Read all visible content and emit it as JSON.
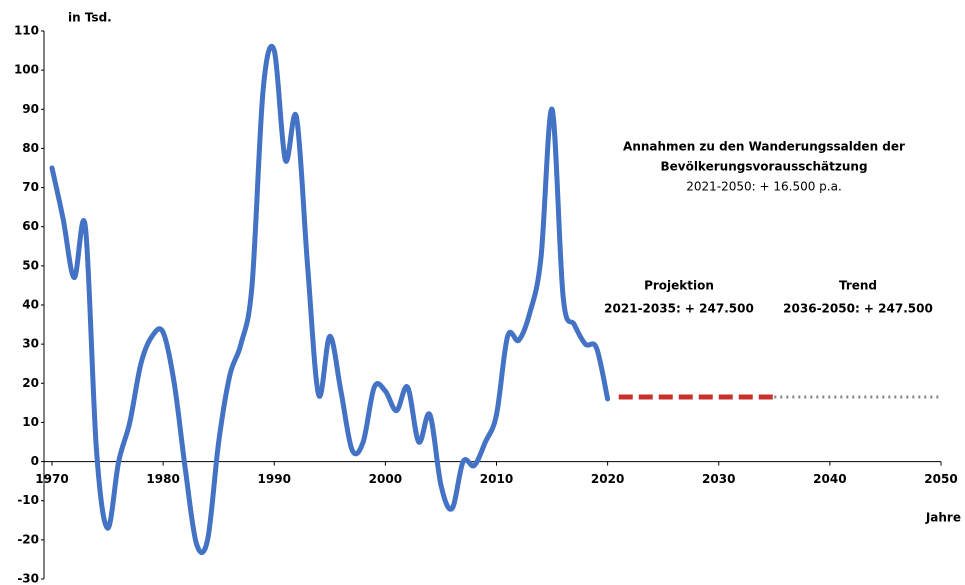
{
  "chart_data": {
    "type": "line",
    "y_axis_label": "in Tsd.",
    "x_axis_label": "Jahre",
    "annotation": {
      "title": [
        "Annahmen zu den Wanderungssalden der",
        "Bevölkerungsvorausschätzung"
      ],
      "subtitle": "2021-2050: + 16.500 p.a."
    },
    "xlim": [
      1970,
      2050
    ],
    "xticks": [
      1970,
      1980,
      1990,
      2000,
      2010,
      2020,
      2030,
      2040,
      2050
    ],
    "ylim": [
      -30,
      110
    ],
    "yticks": [
      -30,
      -20,
      -10,
      0,
      10,
      20,
      30,
      40,
      50,
      60,
      70,
      80,
      90,
      100,
      110
    ],
    "series": [
      {
        "color": "#4472c4",
        "style": "solid",
        "x": [
          1970,
          1971,
          1972,
          1973,
          1974,
          1975,
          1976,
          1977,
          1978,
          1979,
          1980,
          1981,
          1982,
          1983,
          1984,
          1985,
          1986,
          1987,
          1988,
          1989,
          1990,
          1991,
          1992,
          1993,
          1994,
          1995,
          1996,
          1997,
          1998,
          1999,
          2000,
          2001,
          2002,
          2003,
          2004,
          2005,
          2006,
          2007,
          2008,
          2009,
          2010,
          2011,
          2012,
          2013,
          2014,
          2015,
          2016,
          2017,
          2018,
          2019,
          2020
        ],
        "values": [
          75,
          62,
          47,
          60,
          3,
          -17,
          0,
          10,
          25,
          32,
          33,
          20,
          -2,
          -21,
          -20,
          5,
          22,
          30,
          45,
          95,
          105,
          77,
          88,
          50,
          17,
          32,
          18,
          3,
          5,
          19,
          18,
          13,
          19,
          5,
          12,
          -6,
          -12,
          0,
          -1,
          5,
          12,
          32,
          31,
          38,
          52,
          90,
          42,
          35,
          30,
          29,
          16
        ]
      },
      {
        "name": "Projektion",
        "note": "2021-2035: + 247.500",
        "color": "#c8302c",
        "style": "dashed",
        "x": [
          2021,
          2022,
          2023,
          2024,
          2025,
          2026,
          2027,
          2028,
          2029,
          2030,
          2031,
          2032,
          2033,
          2034,
          2035
        ],
        "values": [
          16.5,
          16.5,
          16.5,
          16.5,
          16.5,
          16.5,
          16.5,
          16.5,
          16.5,
          16.5,
          16.5,
          16.5,
          16.5,
          16.5,
          16.5
        ]
      },
      {
        "name": "Trend",
        "note": "2036-2050: + 247.500",
        "color": "#888888",
        "style": "dotted",
        "x": [
          2035,
          2036,
          2037,
          2038,
          2039,
          2040,
          2041,
          2042,
          2043,
          2044,
          2045,
          2046,
          2047,
          2048,
          2049,
          2050
        ],
        "values": [
          16.5,
          16.5,
          16.5,
          16.5,
          16.5,
          16.5,
          16.5,
          16.5,
          16.5,
          16.5,
          16.5,
          16.5,
          16.5,
          16.5,
          16.5,
          16.5
        ]
      }
    ]
  }
}
